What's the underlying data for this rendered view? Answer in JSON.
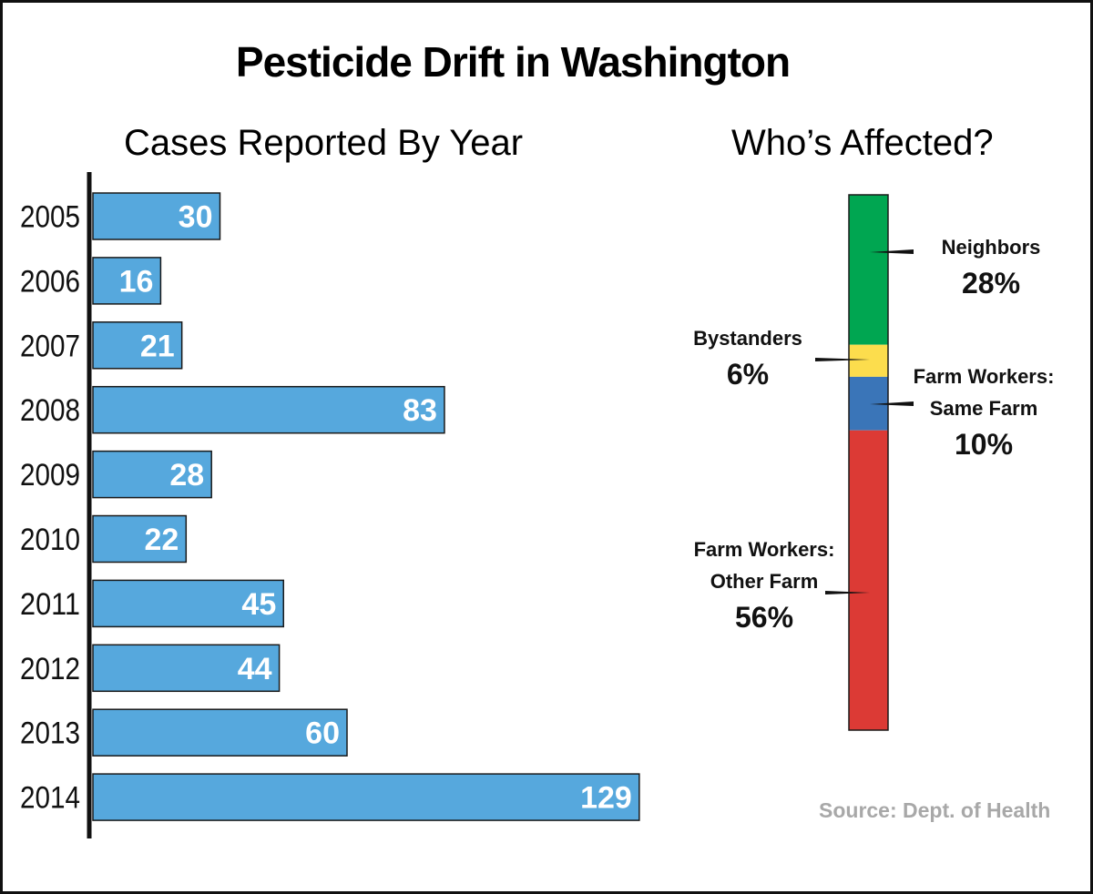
{
  "title": "Pesticide Drift in Washington",
  "source": "Source: Dept. of Health",
  "colors": {
    "bar_fill": "#56A8DD",
    "bar_label": "#ffffff",
    "source_text": "#A8A8A8",
    "neighbors": "#00A651",
    "bystanders": "#FCDD4D",
    "same_farm": "#3A75B8",
    "other_farm": "#DC3A35"
  },
  "chart_data": [
    {
      "type": "bar",
      "orientation": "horizontal",
      "title": "Cases Reported By Year",
      "categories": [
        "2005",
        "2006",
        "2007",
        "2008",
        "2009",
        "2010",
        "2011",
        "2012",
        "2013",
        "2014"
      ],
      "values": [
        30,
        16,
        21,
        83,
        28,
        22,
        45,
        44,
        60,
        129
      ],
      "data_labels": [
        "30",
        "16",
        "21",
        "83",
        "28",
        "22",
        "45",
        "44",
        "60",
        "129"
      ],
      "xlim": [
        0,
        129
      ],
      "grid": false
    },
    {
      "type": "stacked-bar",
      "title": "Who’s Affected?",
      "segments": [
        {
          "name": "Neighbors",
          "value": 28,
          "label": "28%",
          "color": "#00A651"
        },
        {
          "name": "Bystanders",
          "value": 6,
          "label": "6%",
          "color": "#FCDD4D"
        },
        {
          "name": "Farm Workers: Same Farm",
          "lines": [
            "Farm Workers:",
            "Same Farm"
          ],
          "value": 10,
          "label": "10%",
          "color": "#3A75B8"
        },
        {
          "name": "Farm Workers: Other Farm",
          "lines": [
            "Farm Workers:",
            "Other Farm"
          ],
          "value": 56,
          "label": "56%",
          "color": "#DC3A35"
        }
      ]
    }
  ]
}
